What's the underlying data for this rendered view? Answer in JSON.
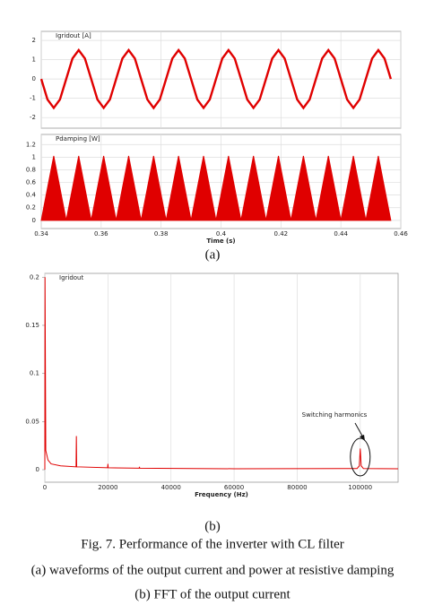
{
  "chart_data": [
    {
      "type": "line",
      "title": "Igridout [A]",
      "color": "#e00000",
      "grid": "both",
      "x": [
        0.34,
        0.34208,
        0.34417,
        0.34625,
        0.34833,
        0.35042,
        0.3525,
        0.35458,
        0.35667,
        0.35875,
        0.36083,
        0.36292,
        0.365,
        0.36708,
        0.36917,
        0.37125,
        0.37333,
        0.37542,
        0.3775,
        0.37958,
        0.38167,
        0.38375,
        0.38583,
        0.38792,
        0.39,
        0.39208,
        0.39417,
        0.39625,
        0.39833,
        0.40042,
        0.4025,
        0.40458,
        0.40667,
        0.40875,
        0.41083,
        0.41292,
        0.415,
        0.41708,
        0.41917,
        0.42125,
        0.42333,
        0.42542,
        0.4275,
        0.42958,
        0.43167,
        0.43375,
        0.43583,
        0.43792,
        0.44,
        0.44208,
        0.44417,
        0.44625,
        0.44833,
        0.45042,
        0.4525,
        0.45458,
        0.45667
      ],
      "values": [
        0,
        -1.06,
        -1.5,
        -1.06,
        0,
        1.06,
        1.5,
        1.06,
        0,
        -1.06,
        -1.5,
        -1.06,
        0,
        1.06,
        1.5,
        1.06,
        0,
        -1.06,
        -1.5,
        -1.06,
        0,
        1.06,
        1.5,
        1.06,
        0,
        -1.06,
        -1.5,
        -1.06,
        0,
        1.06,
        1.5,
        1.06,
        0,
        -1.06,
        -1.5,
        -1.06,
        0,
        1.06,
        1.5,
        1.06,
        0,
        -1.06,
        -1.5,
        -1.06,
        0,
        1.06,
        1.5,
        1.06,
        0,
        -1.06,
        -1.5,
        -1.06,
        0,
        1.06,
        1.5,
        1.06,
        0
      ],
      "xlim": [
        0.34,
        0.46
      ],
      "ylim": [
        -2.55,
        2.47
      ],
      "yticks": [
        2,
        1,
        0,
        -1,
        -2
      ]
    },
    {
      "type": "area",
      "title": "Pdamping [W]",
      "xlabel": "Time (s)",
      "color": "#e00000",
      "grid": "both",
      "x": [
        0.34,
        0.34208,
        0.34417,
        0.34625,
        0.34833,
        0.35042,
        0.3525,
        0.35458,
        0.35667,
        0.35875,
        0.36083,
        0.36292,
        0.365,
        0.36708,
        0.36917,
        0.37125,
        0.37333,
        0.37542,
        0.3775,
        0.37958,
        0.38167,
        0.38375,
        0.38583,
        0.38792,
        0.39,
        0.39208,
        0.39417,
        0.39625,
        0.39833,
        0.40042,
        0.4025,
        0.40458,
        0.40667,
        0.40875,
        0.41083,
        0.41292,
        0.415,
        0.41708,
        0.41917,
        0.42125,
        0.42333,
        0.42542,
        0.4275,
        0.42958,
        0.43167,
        0.43375,
        0.43583,
        0.43792,
        0.44,
        0.44208,
        0.44417,
        0.44625,
        0.44833,
        0.45042,
        0.4525,
        0.45458,
        0.45667
      ],
      "values": [
        0,
        0.51,
        1.02,
        0.51,
        0,
        0.51,
        1.02,
        0.51,
        0,
        0.51,
        1.02,
        0.51,
        0,
        0.51,
        1.02,
        0.51,
        0,
        0.51,
        1.02,
        0.51,
        0,
        0.51,
        1.02,
        0.51,
        0,
        0.51,
        1.02,
        0.51,
        0,
        0.51,
        1.02,
        0.51,
        0,
        0.51,
        1.02,
        0.51,
        0,
        0.51,
        1.02,
        0.51,
        0,
        0.51,
        1.02,
        0.51,
        0,
        0.51,
        1.02,
        0.51,
        0,
        0.51,
        1.02,
        0.51,
        0,
        0.51,
        1.02,
        0.51,
        0
      ],
      "xlim": [
        0.34,
        0.46
      ],
      "ylim": [
        -0.13,
        1.36
      ],
      "xticks": [
        0.34,
        0.36,
        0.38,
        0.4,
        0.42,
        0.44,
        0.46
      ],
      "yticks": [
        1.2,
        1,
        0.8,
        0.6,
        0.4,
        0.2,
        0
      ]
    },
    {
      "type": "line",
      "title": "Igridout",
      "xlabel": "Frequency (Hz)",
      "color": "#e00000",
      "grid": "x",
      "annotation": "Switching harmonics",
      "x": [
        0,
        60,
        300,
        1000,
        2000,
        5000,
        9900,
        10000,
        10100,
        19900,
        20000,
        20100,
        29900,
        30000,
        30100,
        60000,
        99000,
        99700,
        100000,
        100300,
        101000,
        112000
      ],
      "values": [
        0,
        0.2,
        0.02,
        0.01,
        0.006,
        0.004,
        0.003,
        0.035,
        0.003,
        0.002,
        0.006,
        0.002,
        0.0015,
        0.003,
        0.0015,
        0.001,
        0.0012,
        0.004,
        0.022,
        0.004,
        0.0012,
        0.001
      ],
      "xlim": [
        0,
        112000
      ],
      "ylim": [
        -0.013,
        0.204
      ],
      "xticks": [
        0,
        20000,
        40000,
        60000,
        80000,
        100000
      ],
      "yticks": [
        0.2,
        0.15,
        0.1,
        0.05,
        0
      ]
    }
  ],
  "captions": {
    "panel_a": "(a)",
    "panel_b": "(b)",
    "figure": "Fig. 7.  Performance of the inverter with CL filter",
    "line_a": "(a) waveforms of the output current and power at resistive damping",
    "line_b": "(b) FFT of the output current"
  }
}
